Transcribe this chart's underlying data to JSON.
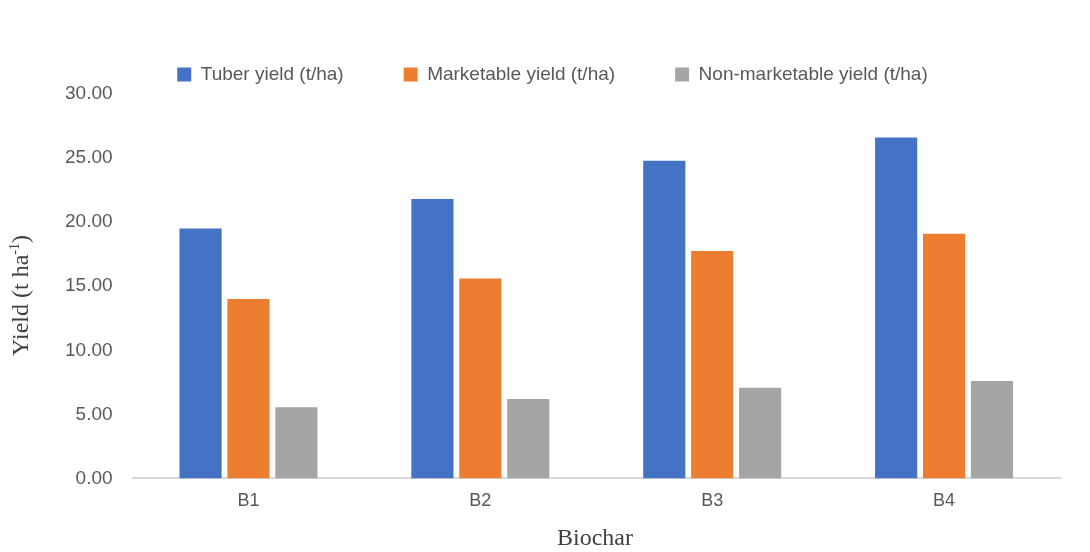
{
  "chart_data": {
    "type": "bar",
    "xlabel": "Biochar",
    "ylabel": "Yield (t ha$^{-1}$)",
    "categories": [
      "B1",
      "B2",
      "B3",
      "B4"
    ],
    "series": [
      {
        "name": "Tuber yield (t/ha)",
        "color": "#4472c4",
        "values": [
          19.5,
          21.8,
          24.8,
          26.6
        ]
      },
      {
        "name": "Marketable yield (t/ha)",
        "color": "#ed7d31",
        "values": [
          14.0,
          15.6,
          17.75,
          19.1
        ]
      },
      {
        "name": "Non-marketable yield (t/ha)",
        "color": "#a5a5a5",
        "values": [
          5.55,
          6.2,
          7.07,
          7.6
        ]
      }
    ],
    "ylim": [
      0,
      30
    ],
    "yticks": [
      {
        "value": 0,
        "label": "0.00"
      },
      {
        "value": 5,
        "label": "5.00"
      },
      {
        "value": 10,
        "label": "10.00"
      },
      {
        "value": 15,
        "label": "15.00"
      },
      {
        "value": 20,
        "label": "20.00"
      },
      {
        "value": 25,
        "label": "25.00"
      },
      {
        "value": 30,
        "label": "30.00"
      }
    ],
    "grid": false,
    "legend": "top"
  }
}
